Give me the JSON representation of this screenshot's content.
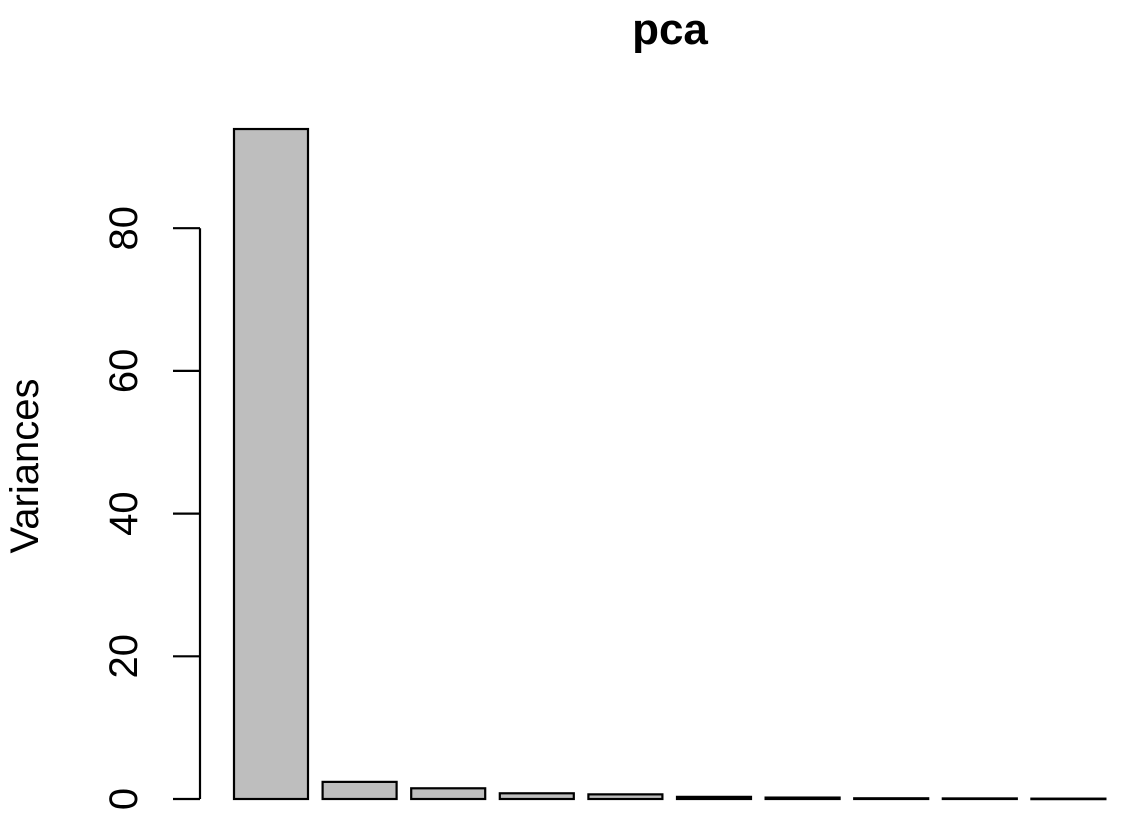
{
  "chart_data": {
    "type": "bar",
    "title": "pca",
    "xlabel": "",
    "ylabel": "Variances",
    "categories": [
      "",
      "",
      "",
      "",
      "",
      "",
      "",
      "",
      "",
      ""
    ],
    "values": [
      93.9,
      2.4,
      1.5,
      0.8,
      0.65,
      0.3,
      0.2,
      0.1,
      0.08,
      0.05
    ],
    "ylim": [
      0,
      94
    ],
    "yticks": [
      0,
      20,
      40,
      60,
      80
    ],
    "ytick_labels": [
      "0",
      "20",
      "40",
      "60",
      "80"
    ],
    "bar_color": "#bebebe",
    "edge_color": "#000000",
    "grid": false,
    "legend": "none"
  }
}
